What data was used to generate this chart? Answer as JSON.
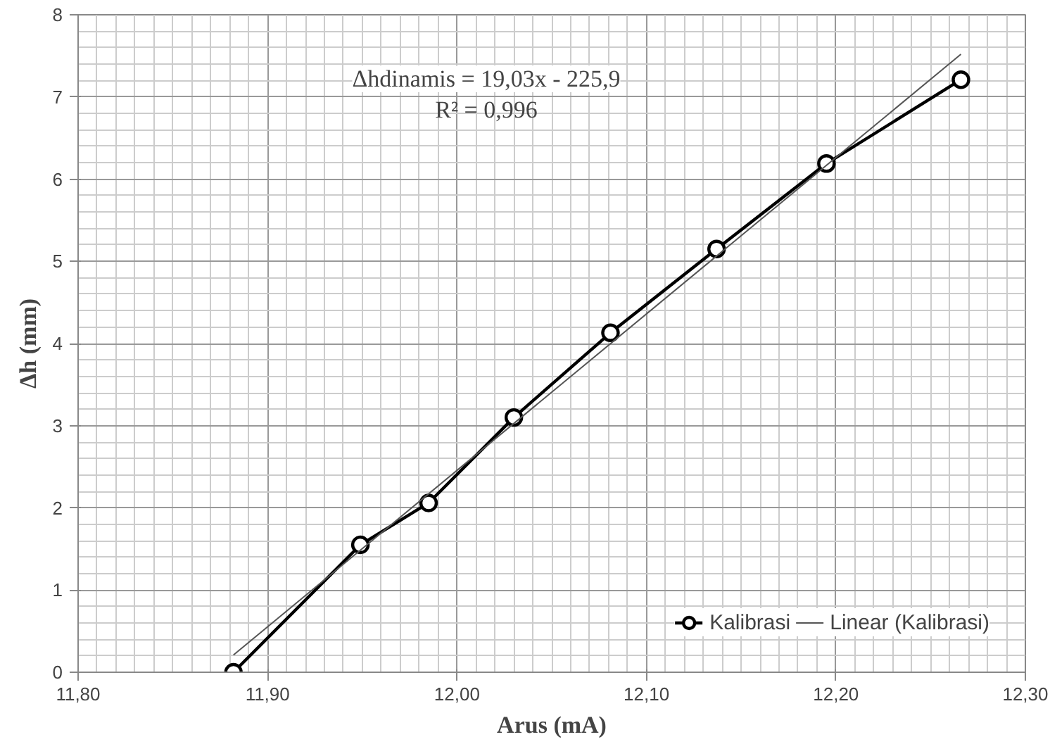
{
  "chart_data": {
    "type": "line",
    "xlabel": "Arus (mA)",
    "ylabel": "Δh (mm)",
    "xlim": [
      11.8,
      12.3
    ],
    "ylim": [
      0,
      8
    ],
    "xticks": [
      {
        "value": 11.8,
        "label": "11,80"
      },
      {
        "value": 11.9,
        "label": "11,90"
      },
      {
        "value": 12.0,
        "label": "12,00"
      },
      {
        "value": 12.1,
        "label": "12,10"
      },
      {
        "value": 12.2,
        "label": "12,20"
      },
      {
        "value": 12.3,
        "label": "12,30"
      }
    ],
    "yticks": [
      0,
      1,
      2,
      3,
      4,
      5,
      6,
      7,
      8
    ],
    "x": [
      11.882,
      11.949,
      11.985,
      12.03,
      12.081,
      12.137,
      12.195,
      12.266
    ],
    "series": [
      {
        "name": "Kalibrasi",
        "color": "#000000",
        "values": [
          0,
          1.55,
          2.06,
          3.1,
          4.13,
          5.15,
          6.19,
          7.21
        ],
        "marker": "circle",
        "line_style": "solid"
      },
      {
        "name": "Linear (Kalibrasi)",
        "color": "#555555",
        "x": [
          11.882,
          12.266
        ],
        "values": [
          0.21,
          7.52
        ],
        "marker": "none",
        "line_style": "solid"
      }
    ],
    "annotations": [
      "Δhdinamis = 19,03x - 225,9",
      "R² = 0,996"
    ],
    "grid": true,
    "legend": "bottom right"
  }
}
